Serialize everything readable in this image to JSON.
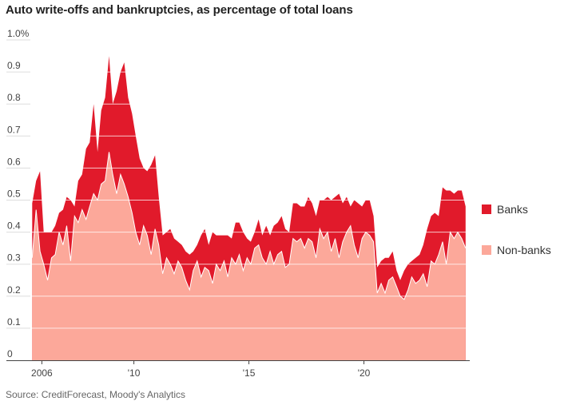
{
  "title": "Auto write-offs and bankruptcies, as percentage of total loans",
  "source": "Source: CreditForecast, Moody's Analytics",
  "chart_data": {
    "type": "area",
    "stacked": true,
    "title": "Auto write-offs and bankruptcies, as percentage of total loans",
    "xlabel": "",
    "ylabel": "",
    "ylim": [
      0,
      1.0
    ],
    "xlim": [
      2005.5,
      2024.6
    ],
    "y_ticks": [
      {
        "value": 0,
        "label": "0"
      },
      {
        "value": 0.1,
        "label": "0.1"
      },
      {
        "value": 0.2,
        "label": "0.2"
      },
      {
        "value": 0.3,
        "label": "0.3"
      },
      {
        "value": 0.4,
        "label": "0.4"
      },
      {
        "value": 0.5,
        "label": "0.5"
      },
      {
        "value": 0.6,
        "label": "0.6"
      },
      {
        "value": 0.7,
        "label": "0.7"
      },
      {
        "value": 0.8,
        "label": "0.8"
      },
      {
        "value": 0.9,
        "label": "0.9"
      },
      {
        "value": 1.0,
        "label": "1.0%"
      }
    ],
    "x_ticks": [
      {
        "value": 2006,
        "label": "2006"
      },
      {
        "value": 2010,
        "label": "'10"
      },
      {
        "value": 2015,
        "label": "'15"
      },
      {
        "value": 2020,
        "label": "'20"
      }
    ],
    "grid": true,
    "legend": "right",
    "x": [
      2005.58,
      2005.75,
      2005.92,
      2006.08,
      2006.25,
      2006.42,
      2006.58,
      2006.75,
      2006.92,
      2007.08,
      2007.25,
      2007.42,
      2007.58,
      2007.75,
      2007.92,
      2008.08,
      2008.25,
      2008.42,
      2008.58,
      2008.75,
      2008.92,
      2009.08,
      2009.25,
      2009.42,
      2009.58,
      2009.75,
      2009.92,
      2010.08,
      2010.25,
      2010.42,
      2010.58,
      2010.75,
      2010.92,
      2011.08,
      2011.25,
      2011.42,
      2011.58,
      2011.75,
      2011.92,
      2012.08,
      2012.25,
      2012.42,
      2012.58,
      2012.75,
      2012.92,
      2013.08,
      2013.25,
      2013.42,
      2013.58,
      2013.75,
      2013.92,
      2014.08,
      2014.25,
      2014.42,
      2014.58,
      2014.75,
      2014.92,
      2015.08,
      2015.25,
      2015.42,
      2015.58,
      2015.75,
      2015.92,
      2016.08,
      2016.25,
      2016.42,
      2016.58,
      2016.75,
      2016.92,
      2017.08,
      2017.25,
      2017.42,
      2017.58,
      2017.75,
      2017.92,
      2018.08,
      2018.25,
      2018.42,
      2018.58,
      2018.75,
      2018.92,
      2019.08,
      2019.25,
      2019.42,
      2019.58,
      2019.75,
      2019.92,
      2020.08,
      2020.25,
      2020.42,
      2020.58,
      2020.75,
      2020.92,
      2021.08,
      2021.25,
      2021.42,
      2021.58,
      2021.75,
      2021.92,
      2022.08,
      2022.25,
      2022.42,
      2022.58,
      2022.75,
      2022.92,
      2023.08,
      2023.25,
      2023.42,
      2023.58,
      2023.75,
      2023.92,
      2024.08,
      2024.25,
      2024.42
    ],
    "series": [
      {
        "name": "Non-banks",
        "color": "#fca89a",
        "values": [
          0.32,
          0.47,
          0.34,
          0.3,
          0.25,
          0.32,
          0.33,
          0.4,
          0.36,
          0.42,
          0.31,
          0.45,
          0.43,
          0.47,
          0.44,
          0.48,
          0.52,
          0.5,
          0.55,
          0.56,
          0.65,
          0.58,
          0.52,
          0.58,
          0.55,
          0.51,
          0.46,
          0.4,
          0.36,
          0.42,
          0.39,
          0.33,
          0.41,
          0.36,
          0.27,
          0.32,
          0.3,
          0.27,
          0.31,
          0.29,
          0.25,
          0.22,
          0.28,
          0.31,
          0.26,
          0.29,
          0.28,
          0.24,
          0.3,
          0.28,
          0.31,
          0.26,
          0.32,
          0.3,
          0.33,
          0.28,
          0.32,
          0.3,
          0.35,
          0.36,
          0.32,
          0.3,
          0.34,
          0.3,
          0.33,
          0.34,
          0.29,
          0.3,
          0.38,
          0.37,
          0.38,
          0.35,
          0.38,
          0.37,
          0.32,
          0.41,
          0.38,
          0.4,
          0.34,
          0.38,
          0.32,
          0.37,
          0.4,
          0.42,
          0.36,
          0.32,
          0.38,
          0.4,
          0.39,
          0.37,
          0.21,
          0.24,
          0.21,
          0.25,
          0.26,
          0.23,
          0.2,
          0.19,
          0.22,
          0.26,
          0.24,
          0.25,
          0.27,
          0.23,
          0.31,
          0.3,
          0.33,
          0.37,
          0.3,
          0.4,
          0.38,
          0.4,
          0.38,
          0.35
        ]
      },
      {
        "name": "Banks",
        "color": "#e11a2b",
        "values": [
          0.17,
          0.09,
          0.25,
          0.1,
          0.15,
          0.08,
          0.09,
          0.06,
          0.11,
          0.09,
          0.19,
          0.03,
          0.13,
          0.11,
          0.22,
          0.2,
          0.28,
          0.15,
          0.23,
          0.26,
          0.3,
          0.22,
          0.32,
          0.32,
          0.38,
          0.31,
          0.31,
          0.3,
          0.27,
          0.18,
          0.2,
          0.28,
          0.23,
          0.15,
          0.12,
          0.08,
          0.11,
          0.11,
          0.06,
          0.07,
          0.09,
          0.11,
          0.06,
          0.05,
          0.13,
          0.12,
          0.08,
          0.16,
          0.09,
          0.11,
          0.08,
          0.13,
          0.06,
          0.13,
          0.1,
          0.12,
          0.06,
          0.07,
          0.05,
          0.08,
          0.07,
          0.12,
          0.05,
          0.12,
          0.1,
          0.11,
          0.12,
          0.1,
          0.11,
          0.12,
          0.1,
          0.13,
          0.13,
          0.12,
          0.13,
          0.09,
          0.12,
          0.11,
          0.16,
          0.13,
          0.2,
          0.12,
          0.11,
          0.06,
          0.14,
          0.17,
          0.1,
          0.1,
          0.11,
          0.08,
          0.08,
          0.07,
          0.11,
          0.07,
          0.08,
          0.05,
          0.05,
          0.09,
          0.08,
          0.05,
          0.08,
          0.08,
          0.09,
          0.18,
          0.14,
          0.16,
          0.12,
          0.17,
          0.23,
          0.13,
          0.14,
          0.13,
          0.15,
          0.13
        ]
      }
    ]
  }
}
